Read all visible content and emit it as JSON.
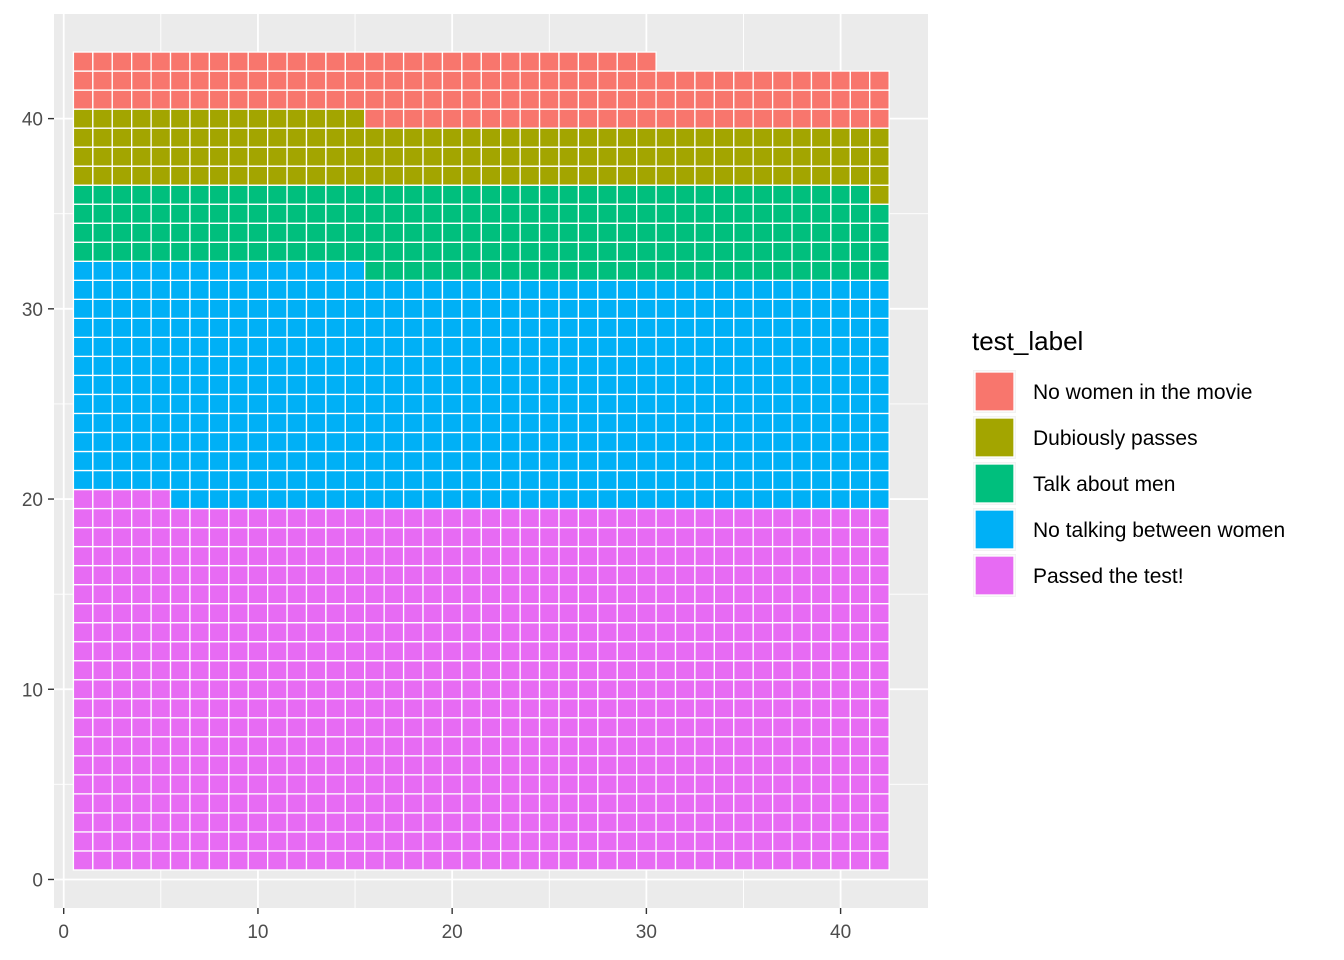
{
  "chart_data": {
    "type": "heatmap",
    "subtype": "waffle",
    "title": "",
    "xlabel": "",
    "ylabel": "",
    "xlim": [
      -0.5,
      44.5
    ],
    "ylim": [
      -1.5,
      45.5
    ],
    "x_ticks": [
      0,
      10,
      20,
      30,
      40
    ],
    "y_ticks": [
      0,
      10,
      20,
      30,
      40
    ],
    "x_tick_labels": [
      "0",
      "10",
      "20",
      "30",
      "40"
    ],
    "y_tick_labels": [
      "0",
      "10",
      "20",
      "30",
      "40"
    ],
    "grid": true,
    "grid_columns": 42,
    "legend": {
      "title": "test_label",
      "position": "right",
      "entries": [
        {
          "label": "No women in the movie",
          "color": "#F8766D"
        },
        {
          "label": "Dubiously passes",
          "color": "#A3A500"
        },
        {
          "label": "Talk about men",
          "color": "#00BF7D"
        },
        {
          "label": "No talking between women",
          "color": "#00B0F6"
        },
        {
          "label": "Passed the test!",
          "color": "#E76BF3"
        }
      ]
    },
    "series": [
      {
        "name": "Passed the test!",
        "count": 803,
        "color": "#E76BF3"
      },
      {
        "name": "No talking between women",
        "count": 514,
        "color": "#00B0F6"
      },
      {
        "name": "Talk about men",
        "count": 194,
        "color": "#00BF7D"
      },
      {
        "name": "Dubiously passes",
        "count": 142,
        "color": "#A3A500"
      },
      {
        "name": "No women in the movie",
        "count": 141,
        "color": "#F8766D"
      }
    ]
  },
  "style": {
    "panel_background": "#EBEBEB",
    "grid_major": "#FFFFFF",
    "tile_border": "#FFFFFF"
  }
}
